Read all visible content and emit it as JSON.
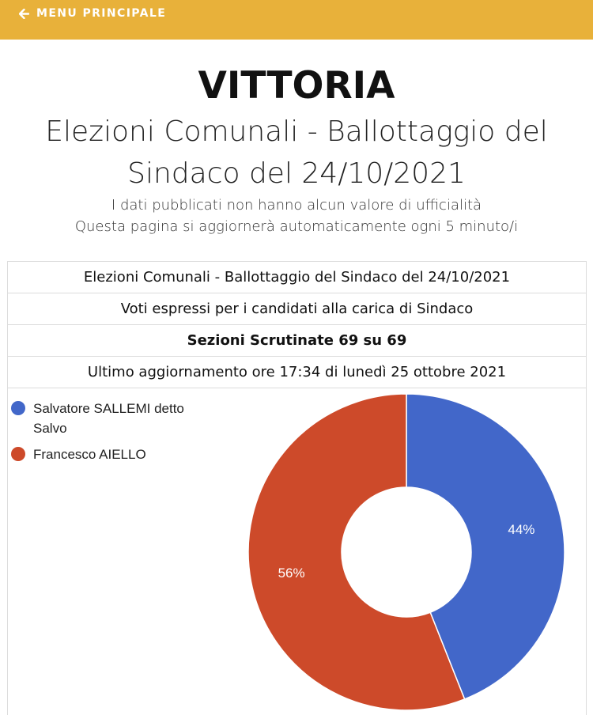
{
  "nav": {
    "back_label": "MENU PRINCIPALE",
    "icon": "arrow-left-icon"
  },
  "header": {
    "city": "VITTORIA",
    "election_title": "Elezioni Comunali - Ballottaggio del Sindaco del 24/10/2021",
    "disclaimer": "I dati pubblicati non hanno alcun valore di ufficialità",
    "refresh_note": "Questa pagina si aggiornerà automaticamente ogni 5 minuto/i"
  },
  "info_table": {
    "election": "Elezioni Comunali - Ballottaggio del Sindaco del 24/10/2021",
    "votes_caption": "Voti espressi per i candidati alla carica di Sindaco",
    "sections": "Sezioni Scrutinate 69 su 69",
    "last_update": "Ultimo aggiornamento ore 17:34 di lunedì 25 ottobre 2021"
  },
  "chart_data": {
    "type": "pie",
    "donut": true,
    "categories": [
      "Salvatore SALLEMI detto Salvo",
      "Francesco AIELLO"
    ],
    "values": [
      44,
      56
    ],
    "data_labels": [
      "44%",
      "56%"
    ],
    "colors": [
      "#4267c9",
      "#cd4a2a"
    ],
    "legend_position": "top-left"
  }
}
